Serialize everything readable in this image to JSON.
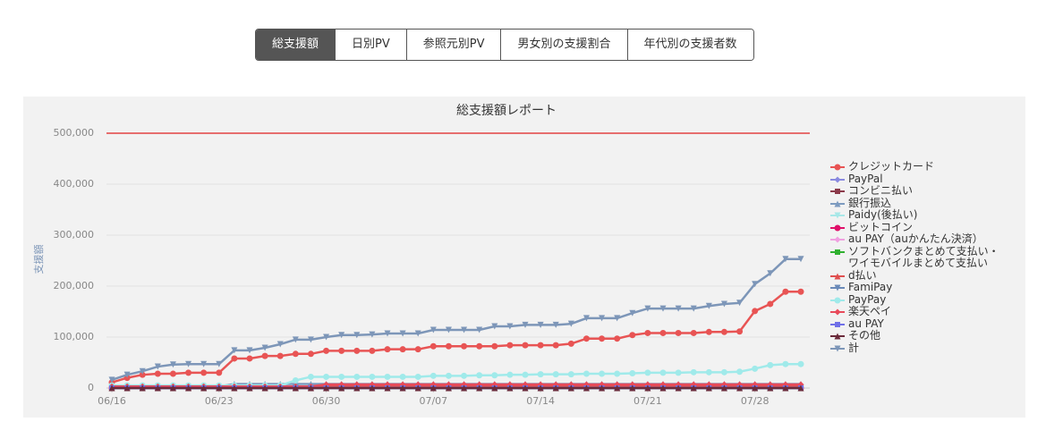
{
  "tabs": [
    "総支援額",
    "日別PV",
    "参照元別PV",
    "男女別の支援割合",
    "年代別の支援者数"
  ],
  "active_tab": 0,
  "chart_data": {
    "type": "line",
    "title": "総支援額レポート",
    "ylabel": "支援額",
    "categories": [
      "06/16",
      null,
      null,
      null,
      null,
      null,
      null,
      "06/23",
      null,
      null,
      null,
      null,
      null,
      null,
      "06/30",
      null,
      null,
      null,
      null,
      null,
      null,
      "07/07",
      null,
      null,
      null,
      null,
      null,
      null,
      "07/14",
      null,
      null,
      null,
      null,
      null,
      null,
      "07/21",
      null,
      null,
      null,
      null,
      null,
      null,
      "07/28",
      null,
      null,
      null
    ],
    "ylim": [
      0,
      500000
    ],
    "yticks": [
      0,
      {
        "value": 100000,
        "label": "100,000"
      },
      {
        "value": 200000,
        "label": "200,000"
      },
      {
        "value": 300000,
        "label": "300,000"
      },
      {
        "value": 400000,
        "label": "400,000"
      },
      {
        "value": 500000,
        "label": "500,000"
      }
    ],
    "grid": true,
    "legend": "right",
    "target_line": {
      "value": 500000,
      "color": "#e02020"
    },
    "series": [
      {
        "name": "クレジットカード",
        "color": "#e85454",
        "marker": "circle",
        "values": [
          11000,
          20000,
          26000,
          28000,
          28000,
          30000,
          30000,
          30000,
          58000,
          58000,
          63000,
          63000,
          67000,
          67000,
          73000,
          73000,
          73000,
          73000,
          76000,
          76000,
          76000,
          82000,
          82000,
          82000,
          82000,
          82000,
          84000,
          84000,
          84000,
          84000,
          87000,
          97000,
          97000,
          97000,
          104000,
          108000,
          108000,
          108000,
          108000,
          110000,
          110000,
          111000,
          151000,
          165000,
          189000,
          189000
        ]
      },
      {
        "name": "PayPal",
        "color": "#8a8ae0",
        "marker": "diamond",
        "values": [
          0,
          0,
          0,
          0,
          0,
          0,
          0,
          0,
          0,
          0,
          0,
          0,
          0,
          0,
          0,
          0,
          0,
          0,
          0,
          0,
          0,
          0,
          0,
          0,
          0,
          0,
          0,
          0,
          0,
          0,
          0,
          0,
          0,
          0,
          0,
          0,
          0,
          0,
          0,
          0,
          0,
          0,
          0,
          0,
          0,
          0
        ]
      },
      {
        "name": "コンビニ払い",
        "color": "#8b3a4a",
        "marker": "square",
        "values": [
          1000,
          1000,
          1000,
          1000,
          1000,
          1000,
          1000,
          1000,
          1000,
          1000,
          1000,
          1000,
          1000,
          1000,
          1000,
          1000,
          1000,
          1000,
          1000,
          1000,
          1000,
          1000,
          1000,
          1000,
          1000,
          1000,
          1000,
          1000,
          1000,
          1000,
          1000,
          1000,
          1000,
          1000,
          1000,
          1000,
          1000,
          1000,
          1000,
          1000,
          1000,
          1000,
          1000,
          1000,
          1000,
          1000
        ]
      },
      {
        "name": "銀行振込",
        "color": "#7d9bc0",
        "marker": "triangle",
        "values": [
          3000,
          3000,
          3000,
          3000,
          3000,
          3000,
          3000,
          3000,
          8000,
          8000,
          8000,
          8000,
          8000,
          8000,
          8000,
          8000,
          8000,
          8000,
          8000,
          8000,
          8000,
          8000,
          8000,
          8000,
          8000,
          8000,
          8000,
          8000,
          8000,
          8000,
          8000,
          8000,
          8000,
          8000,
          8000,
          8000,
          8000,
          8000,
          8000,
          8000,
          8000,
          8000,
          8000,
          8000,
          8000,
          8000
        ]
      },
      {
        "name": "Paidy(後払い)",
        "color": "#a8e8e8",
        "marker": "triangle-down",
        "values": [
          0,
          0,
          0,
          0,
          0,
          0,
          0,
          0,
          0,
          0,
          0,
          0,
          0,
          0,
          0,
          0,
          0,
          0,
          0,
          0,
          0,
          0,
          0,
          0,
          0,
          0,
          0,
          0,
          0,
          0,
          0,
          0,
          0,
          0,
          0,
          0,
          0,
          0,
          0,
          0,
          0,
          0,
          0,
          0,
          0,
          0
        ]
      },
      {
        "name": "ビットコイン",
        "color": "#e0106a",
        "marker": "circle",
        "values": [
          0,
          0,
          0,
          0,
          0,
          0,
          0,
          0,
          0,
          0,
          0,
          0,
          0,
          0,
          0,
          0,
          0,
          0,
          0,
          0,
          0,
          0,
          0,
          0,
          0,
          0,
          0,
          0,
          0,
          0,
          0,
          0,
          0,
          0,
          0,
          0,
          0,
          0,
          0,
          0,
          0,
          0,
          0,
          0,
          0,
          0
        ]
      },
      {
        "name": "au PAY（auかんたん決済）",
        "color": "#f0a0e0",
        "marker": "diamond",
        "values": [
          0,
          0,
          0,
          0,
          0,
          0,
          0,
          0,
          0,
          0,
          0,
          0,
          0,
          0,
          0,
          0,
          0,
          0,
          0,
          0,
          0,
          0,
          0,
          0,
          0,
          0,
          0,
          0,
          0,
          0,
          0,
          0,
          0,
          0,
          0,
          0,
          0,
          0,
          0,
          0,
          0,
          0,
          0,
          0,
          0,
          0
        ]
      },
      {
        "name": "ソフトバンクまとめて支払い・ワイモバイルまとめて支払い",
        "color": "#30b030",
        "marker": "square",
        "values": [
          0,
          0,
          0,
          0,
          0,
          0,
          0,
          0,
          0,
          0,
          0,
          0,
          0,
          0,
          0,
          0,
          0,
          0,
          0,
          0,
          0,
          0,
          0,
          0,
          0,
          0,
          0,
          0,
          0,
          0,
          0,
          0,
          0,
          0,
          0,
          0,
          0,
          0,
          0,
          0,
          0,
          0,
          0,
          0,
          0,
          0
        ]
      },
      {
        "name": "d払い",
        "color": "#e05050",
        "marker": "triangle",
        "values": [
          2000,
          2000,
          2000,
          2000,
          2000,
          2000,
          2000,
          2000,
          2000,
          2000,
          2000,
          2000,
          2000,
          2000,
          4000,
          4000,
          4000,
          4000,
          4000,
          4000,
          4000,
          4000,
          4000,
          4000,
          4000,
          4000,
          4000,
          4000,
          4000,
          4000,
          4000,
          4000,
          4000,
          4000,
          4000,
          4000,
          4000,
          4000,
          4000,
          4000,
          4000,
          4000,
          4000,
          4000,
          4000,
          4000
        ]
      },
      {
        "name": "FamiPay",
        "color": "#6a8ab8",
        "marker": "triangle-down",
        "values": [
          0,
          0,
          0,
          0,
          0,
          0,
          0,
          0,
          0,
          0,
          0,
          0,
          0,
          0,
          0,
          0,
          0,
          0,
          0,
          0,
          0,
          0,
          0,
          0,
          0,
          0,
          0,
          0,
          0,
          0,
          0,
          0,
          0,
          0,
          0,
          0,
          0,
          0,
          0,
          0,
          0,
          0,
          0,
          0,
          0,
          0
        ]
      },
      {
        "name": "PayPay",
        "color": "#a0eaea",
        "marker": "circle",
        "values": [
          5000,
          5000,
          5000,
          5000,
          5000,
          5000,
          5000,
          5000,
          5000,
          5000,
          5000,
          5000,
          15000,
          22000,
          22000,
          22000,
          22000,
          22000,
          22000,
          22000,
          22000,
          24000,
          24000,
          24000,
          25000,
          25000,
          26000,
          26000,
          27000,
          27000,
          27000,
          28000,
          28000,
          28000,
          29000,
          30000,
          30000,
          30000,
          31000,
          31000,
          31000,
          32000,
          38000,
          45000,
          47000,
          47000
        ]
      },
      {
        "name": "楽天ペイ",
        "color": "#e84a5a",
        "marker": "diamond",
        "values": [
          3000,
          3000,
          3000,
          3000,
          3000,
          3000,
          3000,
          3000,
          3000,
          3000,
          3000,
          3000,
          3000,
          3000,
          7000,
          7000,
          7000,
          7000,
          7000,
          7000,
          7000,
          7000,
          7000,
          7000,
          7000,
          7000,
          7000,
          7000,
          7000,
          7000,
          7000,
          7000,
          7000,
          7000,
          7000,
          7000,
          7000,
          7000,
          7000,
          7000,
          7000,
          7000,
          7000,
          7000,
          7000,
          7000
        ]
      },
      {
        "name": "au PAY",
        "color": "#7070e8",
        "marker": "square",
        "values": [
          0,
          0,
          0,
          0,
          0,
          0,
          0,
          0,
          0,
          0,
          0,
          0,
          0,
          0,
          0,
          0,
          0,
          0,
          0,
          0,
          0,
          0,
          0,
          0,
          0,
          0,
          0,
          0,
          0,
          0,
          0,
          0,
          0,
          0,
          0,
          0,
          0,
          0,
          0,
          0,
          0,
          0,
          0,
          0,
          0,
          0
        ]
      },
      {
        "name": "その他",
        "color": "#6a2a3a",
        "marker": "triangle",
        "values": [
          0,
          0,
          0,
          0,
          0,
          0,
          0,
          0,
          0,
          0,
          0,
          0,
          0,
          0,
          0,
          0,
          0,
          0,
          0,
          0,
          0,
          0,
          0,
          0,
          0,
          0,
          0,
          0,
          0,
          0,
          0,
          0,
          0,
          0,
          0,
          0,
          0,
          0,
          0,
          0,
          0,
          0,
          0,
          0,
          0,
          0
        ]
      },
      {
        "name": "計",
        "color": "#7d96b8",
        "marker": "triangle-down",
        "values": [
          16000,
          26000,
          33000,
          42000,
          46000,
          47000,
          47000,
          47000,
          74000,
          74000,
          79000,
          86000,
          95000,
          95000,
          100000,
          104000,
          104000,
          105000,
          107000,
          107000,
          107000,
          114000,
          114000,
          114000,
          114000,
          121000,
          121000,
          124000,
          124000,
          124000,
          126000,
          137000,
          137000,
          137000,
          147000,
          156000,
          156000,
          156000,
          156000,
          161000,
          165000,
          167000,
          204000,
          225000,
          253000,
          253000
        ]
      }
    ]
  }
}
